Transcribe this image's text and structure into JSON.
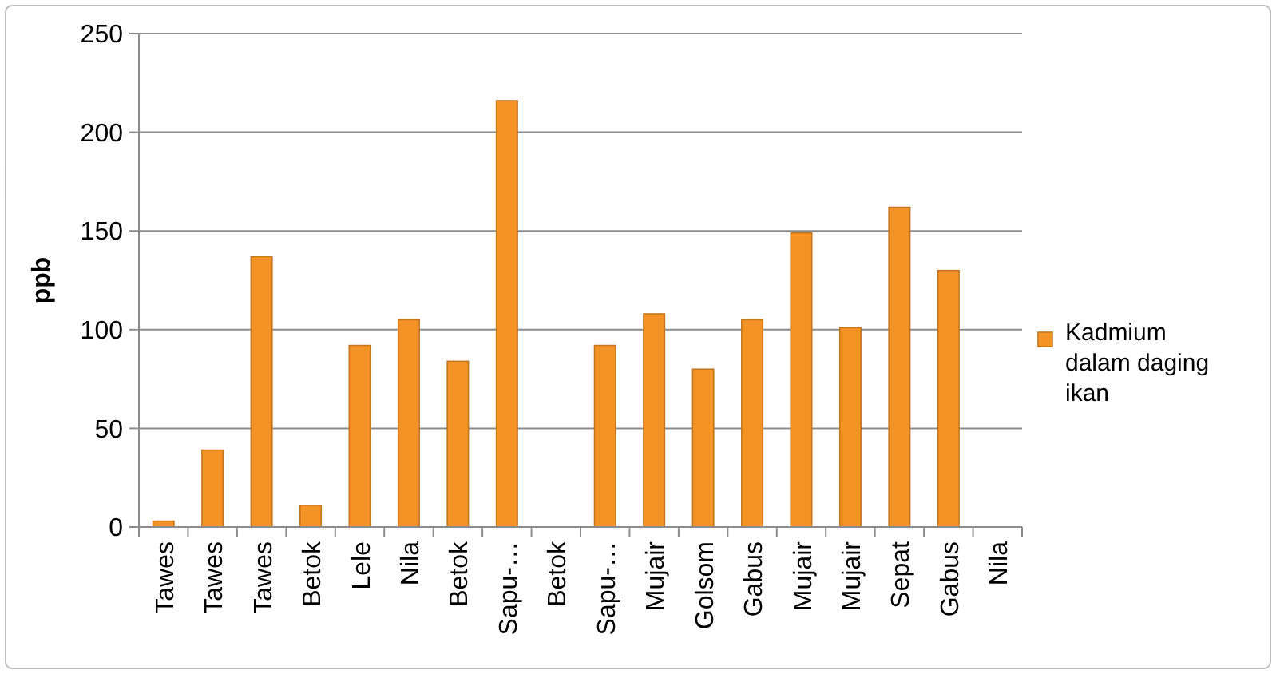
{
  "chart_data": {
    "type": "bar",
    "categories": [
      "Tawes",
      "Tawes",
      "Tawes",
      "Betok",
      "Lele",
      "Nila",
      "Betok",
      "Sapu-…",
      "Betok",
      "Sapu-…",
      "Mujair",
      "Golsom",
      "Gabus",
      "Mujair",
      "Mujair",
      "Sepat",
      "Gabus",
      "Nila"
    ],
    "series": [
      {
        "name": "Kadmium dalam daging ikan",
        "color": "#f39325",
        "values": [
          3,
          39,
          137,
          11,
          92,
          105,
          84,
          216,
          null,
          92,
          108,
          80,
          105,
          149,
          101,
          162,
          130,
          null
        ]
      }
    ],
    "ylabel": "ppb",
    "ylim": [
      0,
      250
    ],
    "yticks": [
      0,
      50,
      100,
      150,
      200,
      250
    ],
    "grid": "y",
    "legend": "right"
  }
}
